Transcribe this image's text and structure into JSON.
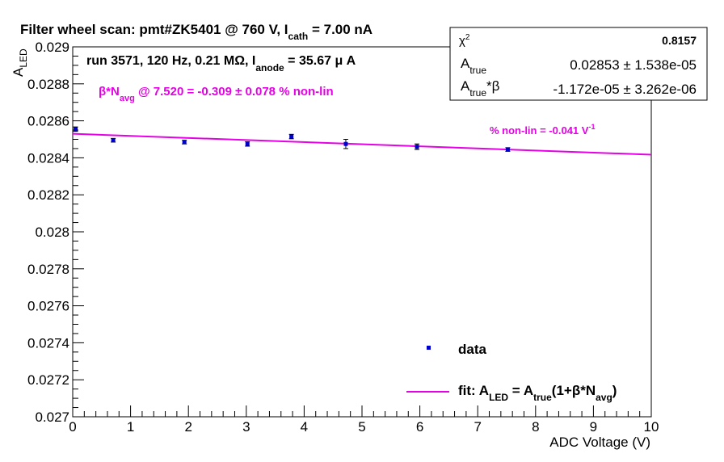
{
  "chart_data": {
    "type": "scatter",
    "title": "Filter wheel scan: pmt#ZK5401 @   760 V, I",
    "title_sub": "cath",
    "title_tail": " = 7.00 nA",
    "xlabel": "ADC Voltage (V)",
    "ylabel": "A",
    "ylabel_sub": "LED",
    "xlim": [
      0,
      10
    ],
    "ylim": [
      0.027,
      0.029
    ],
    "x_ticks": [
      "0",
      "1",
      "2",
      "3",
      "4",
      "5",
      "6",
      "7",
      "8",
      "9",
      "10"
    ],
    "y_ticks": [
      "0.027",
      "0.0272",
      "0.0274",
      "0.0276",
      "0.0278",
      "0.028",
      "0.0282",
      "0.0284",
      "0.0286",
      "0.0288",
      "0.029"
    ],
    "series": [
      {
        "name": "data",
        "x": [
          0.05,
          0.7,
          1.93,
          3.02,
          3.78,
          4.72,
          5.95,
          7.52
        ],
        "y": [
          0.028555,
          0.028495,
          0.028485,
          0.028475,
          0.028515,
          0.028475,
          0.02846,
          0.028445
        ],
        "err": [
          1.2e-05,
          1e-05,
          1e-05,
          1.2e-05,
          1.2e-05,
          2.5e-05,
          1.5e-05,
          1e-05
        ],
        "color": "#0000cc"
      }
    ],
    "fit": {
      "x": [
        0,
        10
      ],
      "y": [
        0.02853,
        0.028417
      ],
      "color": "#e600e6"
    },
    "annotations": {
      "run_a": "run 3571, 120 Hz, 0.21 MΩ, I",
      "run_sub": "anode",
      "run_b": " = 35.67 μ A",
      "beta_a": "β*N",
      "beta_sub": "avg",
      "beta_b": " @ 7.520 = -0.309 ± 0.078 % non-lin",
      "nonlin_a": "% non-lin = -0.041 V",
      "nonlin_sup": "-1"
    },
    "legend": {
      "position": "bottom-right",
      "data_label": "data",
      "fit_a": "fit: A",
      "fit_sub1": "LED",
      "fit_b": " = A",
      "fit_sub2": "true",
      "fit_c": "(1+β*N",
      "fit_sub3": "avg",
      "fit_d": ")"
    },
    "stats": {
      "position": "top-right",
      "chi2_label": "χ",
      "chi2_sup": "2",
      "chi2_value": "0.8157",
      "atrue_label": "A",
      "atrue_sub": "true",
      "atrue_value": "0.02853 ± 1.538e-05",
      "ab_label": "A",
      "ab_sub": "true",
      "ab_tail": "*β",
      "ab_value": "-1.172e-05 ± 3.262e-06"
    },
    "grid": false
  }
}
